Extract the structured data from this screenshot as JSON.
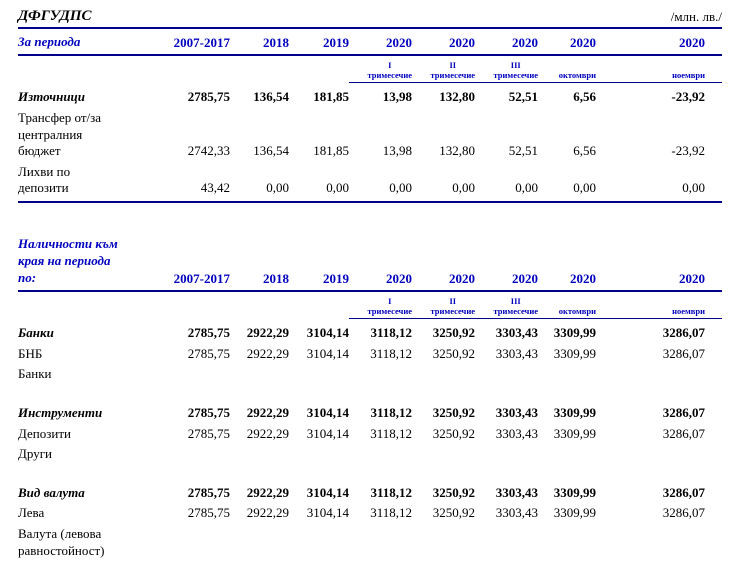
{
  "doc": {
    "title": "ДФГУДПС",
    "unit": "/млн. лв./"
  },
  "colors": {
    "header_text_blue": "#0000c0",
    "rule_line_navy": "#00008b",
    "body_text": "#000000",
    "background": "#ffffff"
  },
  "table1": {
    "period_label": "За периода",
    "years": [
      "2007-2017",
      "2018",
      "2019",
      "2020",
      "2020",
      "2020",
      "2020",
      "2020"
    ],
    "subheaders": [
      "",
      "",
      "",
      "I\nтримесечие",
      "II\nтримесечие",
      "III\nтримесечие",
      "октомври",
      "ноември"
    ],
    "rows": [
      {
        "label": "Източници",
        "bold": true,
        "values": [
          "2785,75",
          "136,54",
          "181,85",
          "13,98",
          "132,80",
          "52,51",
          "6,56",
          "-23,92"
        ]
      },
      {
        "label": "Трансфер от/за централния бюджет",
        "bold": false,
        "values": [
          "2742,33",
          "136,54",
          "181,85",
          "13,98",
          "132,80",
          "52,51",
          "6,56",
          "-23,92"
        ]
      },
      {
        "label": "Лихви по депозити",
        "bold": false,
        "values": [
          "43,42",
          "0,00",
          "0,00",
          "0,00",
          "0,00",
          "0,00",
          "0,00",
          "0,00"
        ]
      }
    ]
  },
  "table2": {
    "period_label": "Наличности към края на периода по:",
    "years": [
      "2007-2017",
      "2018",
      "2019",
      "2020",
      "2020",
      "2020",
      "2020",
      "2020"
    ],
    "subheaders": [
      "",
      "",
      "",
      "I\nтримесечие",
      "II\nтримесечие",
      "III\nтримесечие",
      "октомври",
      "ноември"
    ],
    "rows": [
      {
        "label": "Банки",
        "bold": true,
        "values": [
          "2785,75",
          "2922,29",
          "3104,14",
          "3118,12",
          "3250,92",
          "3303,43",
          "3309,99",
          "3286,07"
        ]
      },
      {
        "label": "БНБ",
        "bold": false,
        "values": [
          "2785,75",
          "2922,29",
          "3104,14",
          "3118,12",
          "3250,92",
          "3303,43",
          "3309,99",
          "3286,07"
        ]
      },
      {
        "label": "Банки",
        "bold": false,
        "values": []
      },
      {
        "spacer": true
      },
      {
        "label": "Инструменти",
        "bold": true,
        "values": [
          "2785,75",
          "2922,29",
          "3104,14",
          "3118,12",
          "3250,92",
          "3303,43",
          "3309,99",
          "3286,07"
        ]
      },
      {
        "label": "Депозити",
        "bold": false,
        "values": [
          "2785,75",
          "2922,29",
          "3104,14",
          "3118,12",
          "3250,92",
          "3303,43",
          "3309,99",
          "3286,07"
        ]
      },
      {
        "label": "Други",
        "bold": false,
        "values": []
      },
      {
        "spacer": true
      },
      {
        "label": "Вид валута",
        "bold": true,
        "values": [
          "2785,75",
          "2922,29",
          "3104,14",
          "3118,12",
          "3250,92",
          "3303,43",
          "3309,99",
          "3286,07"
        ]
      },
      {
        "label": "Лева",
        "bold": false,
        "values": [
          "2785,75",
          "2922,29",
          "3104,14",
          "3118,12",
          "3250,92",
          "3303,43",
          "3309,99",
          "3286,07"
        ]
      },
      {
        "label": "Валута (левова равностойност)",
        "bold": false,
        "values": []
      }
    ]
  }
}
